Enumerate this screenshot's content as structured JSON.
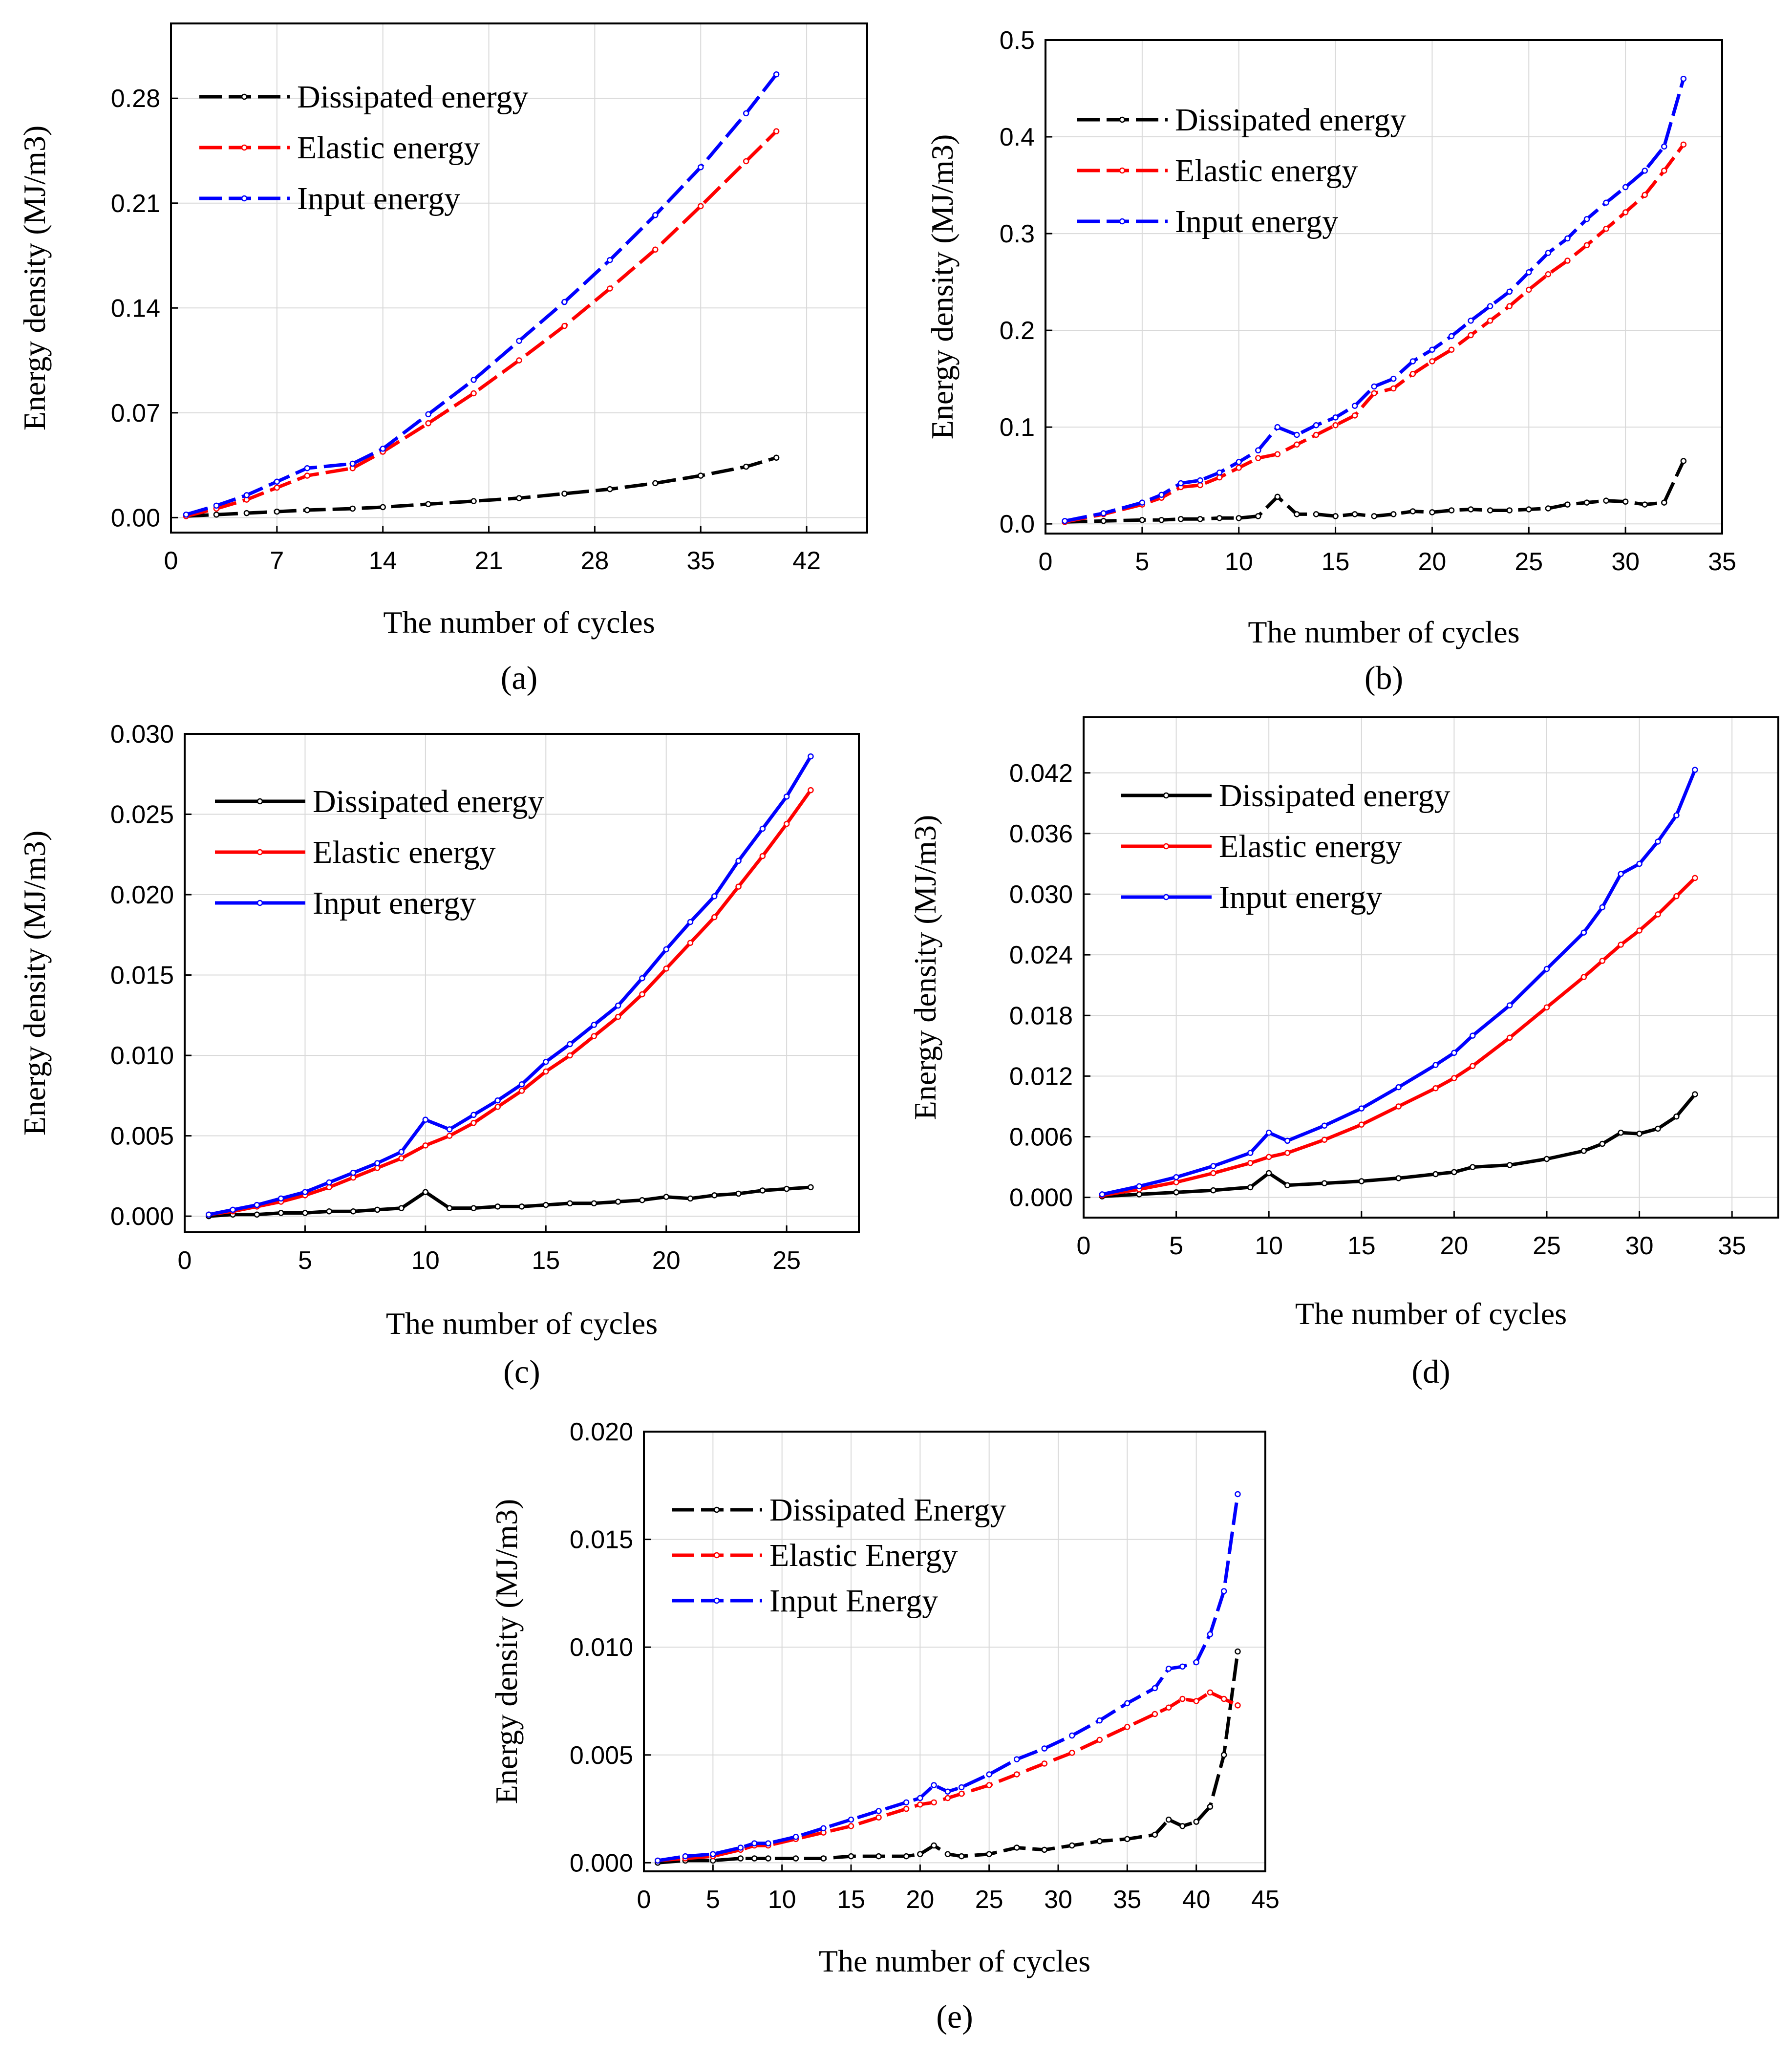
{
  "colors": {
    "dissipated": "#000000",
    "elastic": "#ff0000",
    "input": "#0000ff",
    "grid": "#d9d9d9"
  },
  "chart_data": [
    {
      "type": "line",
      "panel_label": "(a)",
      "xlabel": "The number of cycles",
      "ylabel": "Energy density (MJ/m3)",
      "xlim": [
        0,
        46
      ],
      "ylim": [
        -0.01,
        0.33
      ],
      "xticks": [
        0,
        7,
        14,
        21,
        28,
        35,
        42
      ],
      "yticks": [
        0.0,
        0.07,
        0.14,
        0.21,
        0.28
      ],
      "ytick_labels": [
        "0.00",
        "0.07",
        "0.14",
        "0.21",
        "0.28"
      ],
      "grid": true,
      "legend_position": "top-left",
      "x": [
        1,
        3,
        5,
        7,
        9,
        12,
        14,
        17,
        20,
        23,
        26,
        29,
        32,
        35,
        38,
        40
      ],
      "series": [
        {
          "name": "Dissipated energy",
          "color": "dissipated",
          "dash": "dashed",
          "values": [
            0.001,
            0.002,
            0.003,
            0.004,
            0.005,
            0.006,
            0.007,
            0.009,
            0.011,
            0.013,
            0.016,
            0.019,
            0.023,
            0.028,
            0.034,
            0.04
          ]
        },
        {
          "name": "Elastic energy",
          "color": "elastic",
          "dash": "dashed",
          "values": [
            0.001,
            0.006,
            0.012,
            0.02,
            0.028,
            0.033,
            0.044,
            0.063,
            0.083,
            0.105,
            0.128,
            0.153,
            0.179,
            0.208,
            0.238,
            0.258
          ]
        },
        {
          "name": "Input energy",
          "color": "input",
          "dash": "dashed",
          "values": [
            0.002,
            0.008,
            0.015,
            0.024,
            0.033,
            0.036,
            0.046,
            0.069,
            0.092,
            0.118,
            0.144,
            0.172,
            0.202,
            0.234,
            0.27,
            0.296
          ]
        }
      ]
    },
    {
      "type": "line",
      "panel_label": "(b)",
      "xlabel": "The number of cycles",
      "ylabel": "Energy density (MJ/m3)",
      "xlim": [
        0,
        35
      ],
      "ylim": [
        -0.01,
        0.5
      ],
      "xticks": [
        0,
        5,
        10,
        15,
        20,
        25,
        30,
        35
      ],
      "yticks": [
        0.0,
        0.1,
        0.2,
        0.3,
        0.4,
        0.5
      ],
      "ytick_labels": [
        "0.0",
        "0.1",
        "0.2",
        "0.3",
        "0.4",
        "0.5"
      ],
      "grid": true,
      "legend_position": "top-left",
      "x": [
        1,
        3,
        5,
        6,
        7,
        8,
        9,
        10,
        11,
        12,
        13,
        14,
        15,
        16,
        17,
        18,
        19,
        20,
        21,
        22,
        23,
        24,
        25,
        26,
        27,
        28,
        29,
        30,
        31,
        32,
        33
      ],
      "series": [
        {
          "name": "Dissipated energy",
          "color": "dissipated",
          "dash": "dashed",
          "values": [
            0.002,
            0.003,
            0.004,
            0.004,
            0.005,
            0.005,
            0.006,
            0.006,
            0.008,
            0.028,
            0.01,
            0.01,
            0.008,
            0.01,
            0.008,
            0.01,
            0.013,
            0.012,
            0.014,
            0.015,
            0.014,
            0.014,
            0.015,
            0.016,
            0.02,
            0.022,
            0.024,
            0.023,
            0.02,
            0.022,
            0.065
          ]
        },
        {
          "name": "Elastic energy",
          "color": "elastic",
          "dash": "dashed",
          "values": [
            0.002,
            0.01,
            0.02,
            0.027,
            0.038,
            0.04,
            0.048,
            0.058,
            0.068,
            0.072,
            0.082,
            0.092,
            0.102,
            0.112,
            0.135,
            0.14,
            0.155,
            0.168,
            0.18,
            0.195,
            0.21,
            0.225,
            0.242,
            0.258,
            0.272,
            0.288,
            0.305,
            0.322,
            0.34,
            0.365,
            0.392
          ]
        },
        {
          "name": "Input energy",
          "color": "input",
          "dash": "dashed",
          "values": [
            0.003,
            0.011,
            0.022,
            0.03,
            0.042,
            0.045,
            0.053,
            0.064,
            0.076,
            0.1,
            0.092,
            0.102,
            0.11,
            0.122,
            0.142,
            0.15,
            0.168,
            0.18,
            0.194,
            0.21,
            0.225,
            0.24,
            0.26,
            0.28,
            0.295,
            0.315,
            0.332,
            0.348,
            0.365,
            0.39,
            0.46
          ]
        }
      ]
    },
    {
      "type": "line",
      "panel_label": "(c)",
      "xlabel": "The number of cycles",
      "ylabel": "Energy density (MJ/m3)",
      "xlim": [
        0,
        28
      ],
      "ylim": [
        -0.001,
        0.03
      ],
      "xticks": [
        0,
        5,
        10,
        15,
        20,
        25
      ],
      "yticks": [
        0.0,
        0.005,
        0.01,
        0.015,
        0.02,
        0.025,
        0.03
      ],
      "ytick_labels": [
        "0.000",
        "0.005",
        "0.010",
        "0.015",
        "0.020",
        "0.025",
        "0.030"
      ],
      "grid": true,
      "legend_position": "top-left",
      "x": [
        1,
        2,
        3,
        4,
        5,
        6,
        7,
        8,
        9,
        10,
        11,
        12,
        13,
        14,
        15,
        16,
        17,
        18,
        19,
        20,
        21,
        22,
        23,
        24,
        25,
        26
      ],
      "series": [
        {
          "name": "Dissipated energy",
          "color": "dissipated",
          "dash": "solid",
          "values": [
            0.0,
            0.0001,
            0.0001,
            0.0002,
            0.0002,
            0.0003,
            0.0003,
            0.0004,
            0.0005,
            0.0015,
            0.0005,
            0.0005,
            0.0006,
            0.0006,
            0.0007,
            0.0008,
            0.0008,
            0.0009,
            0.001,
            0.0012,
            0.0011,
            0.0013,
            0.0014,
            0.0016,
            0.0017,
            0.0018
          ]
        },
        {
          "name": "Elastic energy",
          "color": "elastic",
          "dash": "solid",
          "values": [
            0.0001,
            0.0003,
            0.0006,
            0.0009,
            0.0013,
            0.0018,
            0.0024,
            0.003,
            0.0036,
            0.0044,
            0.005,
            0.0058,
            0.0068,
            0.0078,
            0.009,
            0.01,
            0.0112,
            0.0124,
            0.0138,
            0.0154,
            0.017,
            0.0186,
            0.0205,
            0.0224,
            0.0244,
            0.0265
          ]
        },
        {
          "name": "Input energy",
          "color": "input",
          "dash": "solid",
          "values": [
            0.0001,
            0.0004,
            0.0007,
            0.0011,
            0.0015,
            0.0021,
            0.0027,
            0.0033,
            0.004,
            0.006,
            0.0054,
            0.0063,
            0.0072,
            0.0082,
            0.0096,
            0.0107,
            0.0119,
            0.0131,
            0.0148,
            0.0166,
            0.0183,
            0.0199,
            0.0221,
            0.0241,
            0.0261,
            0.0286
          ]
        }
      ]
    },
    {
      "type": "line",
      "panel_label": "(d)",
      "xlabel": "The number of cycles",
      "ylabel": "Energy density (MJ/m3)",
      "xlim": [
        0,
        37.5
      ],
      "ylim": [
        -0.002,
        0.0475
      ],
      "xticks": [
        0,
        5,
        10,
        15,
        20,
        25,
        30,
        35
      ],
      "yticks": [
        0.0,
        0.006,
        0.012,
        0.018,
        0.024,
        0.03,
        0.036,
        0.042
      ],
      "ytick_labels": [
        "0.000",
        "0.006",
        "0.012",
        "0.018",
        "0.024",
        "0.030",
        "0.036",
        "0.042"
      ],
      "grid": true,
      "legend_position": "top-left",
      "x": [
        1,
        3,
        5,
        7,
        9,
        10,
        11,
        13,
        15,
        17,
        19,
        20,
        21,
        23,
        25,
        27,
        28,
        29,
        30,
        31,
        32,
        33
      ],
      "series": [
        {
          "name": "Dissipated energy",
          "color": "dissipated",
          "dash": "solid",
          "values": [
            0.0001,
            0.0003,
            0.0005,
            0.0007,
            0.001,
            0.0024,
            0.0012,
            0.0014,
            0.0016,
            0.0019,
            0.0023,
            0.0025,
            0.003,
            0.0032,
            0.0038,
            0.0046,
            0.0053,
            0.0064,
            0.0063,
            0.0068,
            0.008,
            0.0102
          ]
        },
        {
          "name": "Elastic energy",
          "color": "elastic",
          "dash": "solid",
          "values": [
            0.0002,
            0.0008,
            0.0015,
            0.0024,
            0.0034,
            0.004,
            0.0044,
            0.0057,
            0.0072,
            0.009,
            0.0108,
            0.0118,
            0.013,
            0.0158,
            0.0188,
            0.0218,
            0.0234,
            0.025,
            0.0264,
            0.028,
            0.0298,
            0.0316
          ]
        },
        {
          "name": "Input energy",
          "color": "input",
          "dash": "solid",
          "values": [
            0.0003,
            0.0011,
            0.002,
            0.0031,
            0.0044,
            0.0064,
            0.0056,
            0.0071,
            0.0088,
            0.0109,
            0.0131,
            0.0143,
            0.016,
            0.019,
            0.0226,
            0.0262,
            0.0287,
            0.032,
            0.033,
            0.0352,
            0.0378,
            0.0423
          ]
        }
      ]
    },
    {
      "type": "line",
      "panel_label": "(e)",
      "xlabel": "The number of cycles",
      "ylabel": "Energy density (MJ/m3)",
      "xlim": [
        0,
        45
      ],
      "ylim": [
        -0.0004,
        0.02
      ],
      "xticks": [
        0,
        5,
        10,
        15,
        20,
        25,
        30,
        35,
        40,
        45
      ],
      "yticks": [
        0.0,
        0.005,
        0.01,
        0.015,
        0.02
      ],
      "ytick_labels": [
        "0.000",
        "0.005",
        "0.010",
        "0.015",
        "0.020"
      ],
      "grid": true,
      "legend_position": "top-left",
      "x": [
        1,
        3,
        5,
        7,
        8,
        9,
        11,
        13,
        15,
        17,
        19,
        20,
        21,
        22,
        23,
        25,
        27,
        29,
        31,
        33,
        35,
        37,
        38,
        39,
        40,
        41,
        42,
        43
      ],
      "series": [
        {
          "name": "Dissipated Energy",
          "color": "dissipated",
          "dash": "dashed",
          "values": [
            0.0,
            0.0001,
            0.0001,
            0.0002,
            0.0002,
            0.0002,
            0.0002,
            0.0002,
            0.0003,
            0.0003,
            0.0003,
            0.0004,
            0.0008,
            0.0004,
            0.0003,
            0.0004,
            0.0007,
            0.0006,
            0.0008,
            0.001,
            0.0011,
            0.0013,
            0.002,
            0.0017,
            0.0019,
            0.0026,
            0.005,
            0.0098
          ]
        },
        {
          "name": "Elastic Energy",
          "color": "elastic",
          "dash": "dashed",
          "values": [
            0.0001,
            0.0002,
            0.0003,
            0.0006,
            0.0008,
            0.0008,
            0.0011,
            0.0014,
            0.0017,
            0.0021,
            0.0025,
            0.0027,
            0.0028,
            0.003,
            0.0032,
            0.0036,
            0.0041,
            0.0046,
            0.0051,
            0.0057,
            0.0063,
            0.0069,
            0.0072,
            0.0076,
            0.0075,
            0.0079,
            0.0076,
            0.0073
          ]
        },
        {
          "name": "Input Energy",
          "color": "input",
          "dash": "dashed",
          "values": [
            0.0001,
            0.0003,
            0.0004,
            0.0007,
            0.0009,
            0.0009,
            0.0012,
            0.0016,
            0.002,
            0.0024,
            0.0028,
            0.003,
            0.0036,
            0.0033,
            0.0035,
            0.0041,
            0.0048,
            0.0053,
            0.0059,
            0.0066,
            0.0074,
            0.0081,
            0.009,
            0.0091,
            0.0093,
            0.0106,
            0.0126,
            0.0171
          ]
        }
      ]
    }
  ]
}
